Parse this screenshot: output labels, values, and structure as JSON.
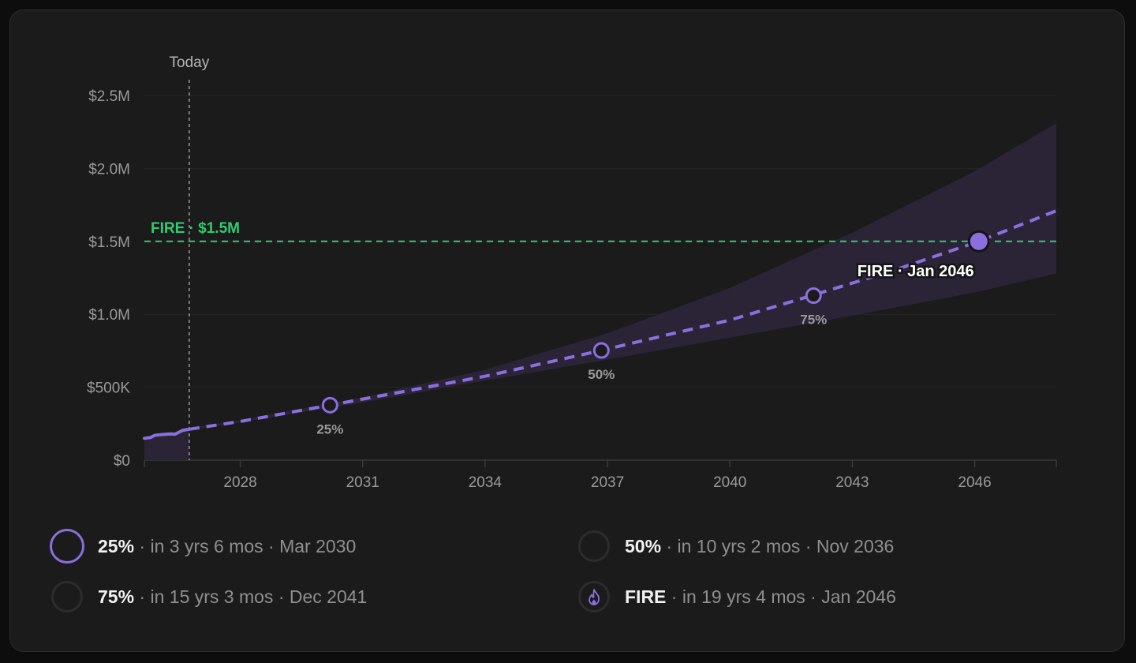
{
  "chart_data": {
    "type": "line",
    "title": "",
    "xlabel": "",
    "ylabel": "",
    "x_unit": "year",
    "xlim": [
      2025.65,
      2048.0
    ],
    "ylim": [
      0,
      2500000
    ],
    "y_ticks": [
      {
        "value": 0,
        "label": "$0"
      },
      {
        "value": 500000,
        "label": "$500K"
      },
      {
        "value": 1000000,
        "label": "$1.0M"
      },
      {
        "value": 1500000,
        "label": "$1.5M"
      },
      {
        "value": 2000000,
        "label": "$2.0M"
      },
      {
        "value": 2500000,
        "label": "$2.5M"
      }
    ],
    "x_ticks": [
      {
        "value": 2028,
        "label": "2028"
      },
      {
        "value": 2031,
        "label": "2031"
      },
      {
        "value": 2034,
        "label": "2034"
      },
      {
        "value": 2037,
        "label": "2037"
      },
      {
        "value": 2040,
        "label": "2040"
      },
      {
        "value": 2043,
        "label": "2043"
      },
      {
        "value": 2046,
        "label": "2046"
      }
    ],
    "grid": true,
    "today": {
      "x": 2026.75,
      "label": "Today"
    },
    "target": {
      "value": 1500000,
      "label": "FIRE · $1.5M",
      "color": "#2ecc71"
    },
    "series": [
      {
        "role": "history",
        "color": "#8b6fe0",
        "points": [
          [
            2025.65,
            150000
          ],
          [
            2025.8,
            155000
          ],
          [
            2025.9,
            170000
          ],
          [
            2026.05,
            175000
          ],
          [
            2026.2,
            178000
          ],
          [
            2026.3,
            180000
          ],
          [
            2026.4,
            178000
          ],
          [
            2026.5,
            192000
          ],
          [
            2026.6,
            205000
          ],
          [
            2026.75,
            212000
          ]
        ]
      },
      {
        "role": "projection",
        "color": "#8b6fe0",
        "points": [
          [
            2026.75,
            212000
          ],
          [
            2028,
            265000
          ],
          [
            2030.2,
            377000
          ],
          [
            2032,
            470000
          ],
          [
            2034,
            575000
          ],
          [
            2036.85,
            752000
          ],
          [
            2040,
            960000
          ],
          [
            2042,
            1128000
          ],
          [
            2044,
            1300000
          ],
          [
            2046.1,
            1500000
          ],
          [
            2048,
            1710000
          ]
        ]
      }
    ],
    "band": {
      "color": "#2c2538",
      "upper": [
        [
          2026.75,
          220000
        ],
        [
          2028,
          275000
        ],
        [
          2031,
          430000
        ],
        [
          2034,
          620000
        ],
        [
          2037,
          870000
        ],
        [
          2040,
          1180000
        ],
        [
          2043,
          1560000
        ],
        [
          2046,
          1980000
        ],
        [
          2048,
          2310000
        ]
      ],
      "lower": [
        [
          2026.75,
          205000
        ],
        [
          2028,
          260000
        ],
        [
          2031,
          395000
        ],
        [
          2034,
          545000
        ],
        [
          2037,
          690000
        ],
        [
          2040,
          840000
        ],
        [
          2043,
          990000
        ],
        [
          2046,
          1150000
        ],
        [
          2048,
          1280000
        ]
      ]
    },
    "markers": [
      {
        "x": 2030.2,
        "y": 377000,
        "label": "25%",
        "style": "ring"
      },
      {
        "x": 2036.85,
        "y": 752000,
        "label": "50%",
        "style": "ring"
      },
      {
        "x": 2042.05,
        "y": 1128000,
        "label": "75%",
        "style": "ring"
      },
      {
        "x": 2046.1,
        "y": 1500000,
        "label": "FIRE · Jan 2046",
        "style": "filled"
      }
    ]
  },
  "milestones": [
    {
      "name": "25%",
      "detail": " · in 3 yrs 6 mos · Mar 2030",
      "icon": "progress-ring-icon",
      "active": true
    },
    {
      "name": "50%",
      "detail": " · in 10 yrs 2 mos · Nov 2036",
      "icon": "progress-ring-icon",
      "active": false
    },
    {
      "name": "75%",
      "detail": " · in 15 yrs 3 mos · Dec 2041",
      "icon": "progress-ring-icon",
      "active": false
    },
    {
      "name": "FIRE",
      "detail": " · in 19 yrs 4 mos · Jan 2046",
      "icon": "flame-icon",
      "active": false
    }
  ],
  "colors": {
    "accent": "#8b6fe0",
    "target": "#2ecc71",
    "axis_text": "#9a9a9a",
    "background": "#1b1b1b"
  }
}
